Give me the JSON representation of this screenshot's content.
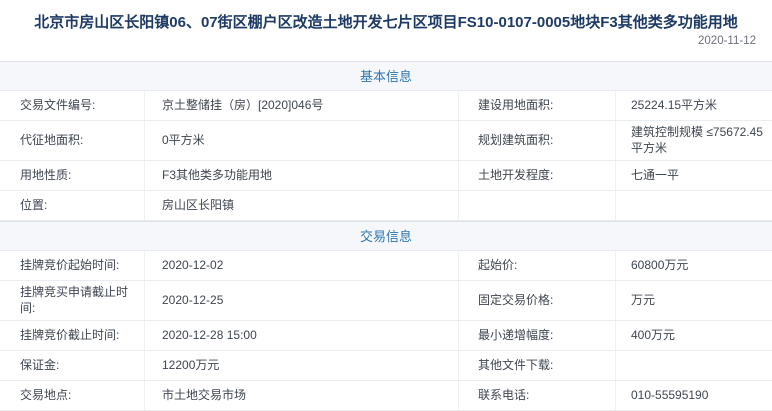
{
  "page": {
    "title": "北京市房山区长阳镇06、07街区棚户区改造土地开发七片区项目FS10-0107-0005地块F3其他类多功能用地",
    "date": "2020-11-12"
  },
  "colors": {
    "accent": "#2e76b0",
    "title": "#1d3a64",
    "text": "#3f4650"
  },
  "sections": [
    {
      "heading": "基本信息",
      "rows": [
        {
          "l1": "交易文件编号:",
          "v1": "京土整储挂（房）[2020]046号",
          "l2": "建设用地面积:",
          "v2": "25224.15平方米"
        },
        {
          "l1": "代征地面积:",
          "v1": "0平方米",
          "l2": "规划建筑面积:",
          "v2": "建筑控制规模 ≤75672.45平方米"
        },
        {
          "l1": "用地性质:",
          "v1": "F3其他类多功能用地",
          "l2": "土地开发程度:",
          "v2": "七通一平"
        },
        {
          "l1": "位置:",
          "v1": "房山区长阳镇",
          "l2": "",
          "v2": ""
        }
      ]
    },
    {
      "heading": "交易信息",
      "rows": [
        {
          "l1": "挂牌竞价起始时间:",
          "v1": "2020-12-02",
          "l2": "起始价:",
          "v2": "60800万元"
        },
        {
          "l1": "挂牌竞买申请截止时间:",
          "v1": "2020-12-25",
          "l2": "固定交易价格:",
          "v2": "万元"
        },
        {
          "l1": "挂牌竞价截止时间:",
          "v1": "2020-12-28 15:00",
          "l2": "最小递增幅度:",
          "v2": "400万元"
        },
        {
          "l1": "保证金:",
          "v1": "12200万元",
          "l2": "其他文件下载:",
          "v2": ""
        },
        {
          "l1": "交易地点:",
          "v1": "市土地交易市场",
          "l2": "联系电话:",
          "v2": "010-55595190"
        }
      ]
    }
  ]
}
